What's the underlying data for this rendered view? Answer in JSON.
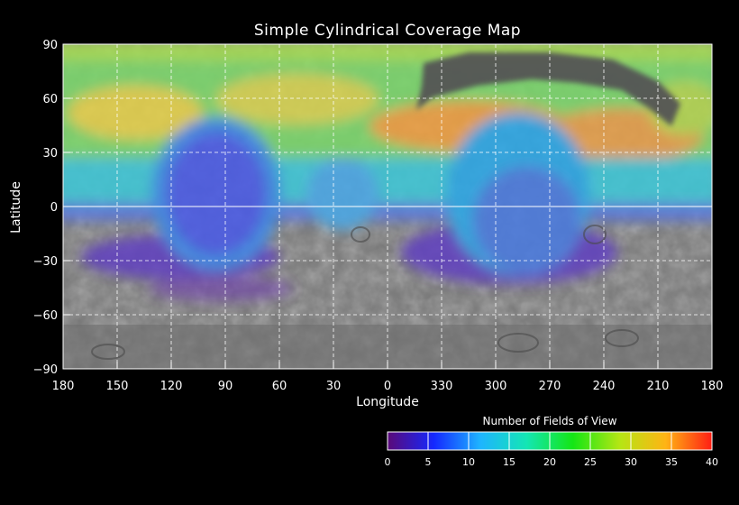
{
  "title": "Simple Cylindrical Coverage Map",
  "map": {
    "x_axis_label": "Longitude",
    "y_axis_label": "Latitude",
    "longitude_ticks": [
      "180",
      "150",
      "120",
      "90",
      "60",
      "30",
      "0",
      "330",
      "300",
      "270",
      "240",
      "210",
      "180"
    ],
    "latitude_ticks": [
      "90",
      "60",
      "30",
      "0",
      "−30",
      "−60",
      "−90"
    ],
    "gridlines": "dashed-white",
    "colorbar": {
      "title": "Number of Fields of View",
      "ticks": [
        "0",
        "5",
        "10",
        "15",
        "20",
        "25",
        "30",
        "35",
        "40"
      ],
      "range": [
        0,
        40
      ],
      "colors": [
        "#5a0a78",
        "#1428ff",
        "#1eb4ff",
        "#14e6b4",
        "#14e614",
        "#b4e614",
        "#ffb414",
        "#ff1e14"
      ]
    }
  }
}
